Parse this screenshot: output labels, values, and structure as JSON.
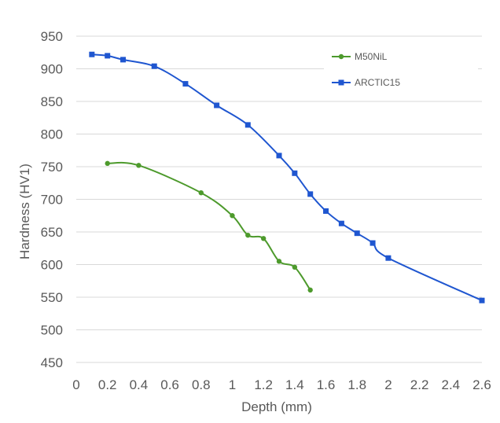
{
  "chart_data": {
    "type": "line",
    "title": "",
    "xlabel": "Depth (mm)",
    "ylabel": "Hardness (HV1)",
    "xlim": [
      0,
      2.6
    ],
    "ylim": [
      450,
      950
    ],
    "x_ticks": [
      0,
      0.2,
      0.4,
      0.6,
      0.8,
      1,
      1.2,
      1.4,
      1.6,
      1.8,
      2,
      2.2,
      2.4,
      2.6
    ],
    "x_tick_labels": [
      "0",
      "0.2",
      "0.4",
      "0.6",
      "0.8",
      "1",
      "1.2",
      "1.4",
      "1.6",
      "1.8",
      "2",
      "2.2",
      "2.4",
      "2.6"
    ],
    "y_ticks": [
      450,
      500,
      550,
      600,
      650,
      700,
      750,
      800,
      850,
      900,
      950
    ],
    "y_tick_labels": [
      "450",
      "500",
      "550",
      "600",
      "650",
      "700",
      "750",
      "800",
      "850",
      "900",
      "950"
    ],
    "grid": "horizontal",
    "legend_position": "top-right",
    "series": [
      {
        "name": "M50NiL",
        "color": "#4d9a2c",
        "marker": "circle",
        "points": [
          [
            0.2,
            755
          ],
          [
            0.4,
            752
          ],
          [
            0.8,
            710
          ],
          [
            1.0,
            675
          ],
          [
            1.1,
            645
          ],
          [
            1.2,
            640
          ],
          [
            1.3,
            605
          ],
          [
            1.4,
            596
          ],
          [
            1.5,
            561
          ]
        ]
      },
      {
        "name": "ARCTIC15",
        "color": "#1f56d0",
        "marker": "square",
        "points": [
          [
            0.1,
            922
          ],
          [
            0.2,
            920
          ],
          [
            0.3,
            914
          ],
          [
            0.5,
            904
          ],
          [
            0.7,
            877
          ],
          [
            0.9,
            844
          ],
          [
            1.1,
            814
          ],
          [
            1.3,
            767
          ],
          [
            1.4,
            740
          ],
          [
            1.5,
            708
          ],
          [
            1.6,
            682
          ],
          [
            1.7,
            663
          ],
          [
            1.8,
            648
          ],
          [
            1.9,
            633
          ],
          [
            2.0,
            610
          ],
          [
            2.6,
            545
          ]
        ]
      }
    ]
  }
}
